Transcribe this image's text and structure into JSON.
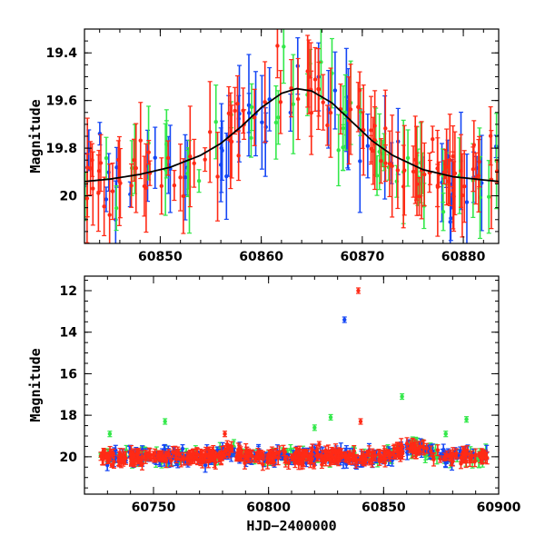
{
  "colors": {
    "red": "#ff2a16",
    "green": "#33e84a",
    "blue": "#1446f5",
    "model": "#000000"
  },
  "chart_data": [
    {
      "type": "scatter",
      "panel": "top",
      "xlim": [
        60842.5,
        60883.5
      ],
      "ylim": [
        20.2,
        19.3
      ],
      "y_inverted": true,
      "xticks": [
        60850,
        60860,
        60870,
        60880
      ],
      "yticks": [
        19.4,
        19.6,
        19.8,
        20
      ],
      "xlabel": "",
      "ylabel": "Magnitude",
      "grid": false,
      "series": [
        {
          "color": "red",
          "marker": "point with error bar"
        },
        {
          "color": "green",
          "marker": "point with error bar"
        },
        {
          "color": "blue",
          "marker": "point with error bar"
        }
      ],
      "model_curve": {
        "description_color": "model",
        "x": [
          60842.5,
          60845,
          60848,
          60851,
          60854,
          60856,
          60858,
          60860,
          60862,
          60863.5,
          60865,
          60867,
          60869,
          60871,
          60873,
          60876,
          60879,
          60883.5
        ],
        "y": [
          19.94,
          19.93,
          19.91,
          19.88,
          19.83,
          19.78,
          19.71,
          19.63,
          19.57,
          19.55,
          19.56,
          19.61,
          19.69,
          19.77,
          19.83,
          19.89,
          19.92,
          19.94
        ]
      }
    },
    {
      "type": "scatter",
      "panel": "bottom",
      "xlim": [
        60720,
        60900
      ],
      "ylim": [
        21.8,
        11.3
      ],
      "y_inverted": true,
      "xticks": [
        60750,
        60800,
        60850,
        60900
      ],
      "yticks": [
        12,
        14,
        16,
        18,
        20
      ],
      "xlabel": "HJD−2400000",
      "ylabel": "Magnitude",
      "grid": false,
      "series": [
        {
          "color": "red",
          "marker": "point with error bar"
        },
        {
          "color": "green",
          "marker": "point with error bar"
        },
        {
          "color": "blue",
          "marker": "point with error bar"
        }
      ],
      "baseline_mag": 20.0,
      "outliers": [
        {
          "x": 60839,
          "y": 12.0,
          "color": "red"
        },
        {
          "x": 60833,
          "y": 13.4,
          "color": "blue"
        },
        {
          "x": 60731,
          "y": 18.9,
          "color": "green"
        },
        {
          "x": 60755,
          "y": 18.3,
          "color": "green"
        },
        {
          "x": 60820,
          "y": 18.6,
          "color": "green"
        },
        {
          "x": 60827,
          "y": 18.1,
          "color": "green"
        },
        {
          "x": 60840,
          "y": 18.3,
          "color": "red"
        },
        {
          "x": 60858,
          "y": 17.1,
          "color": "green"
        },
        {
          "x": 60877,
          "y": 18.9,
          "color": "green"
        },
        {
          "x": 60886,
          "y": 18.2,
          "color": "green"
        },
        {
          "x": 60822,
          "y": 19.4,
          "color": "red"
        },
        {
          "x": 60781,
          "y": 18.9,
          "color": "red"
        }
      ]
    }
  ]
}
